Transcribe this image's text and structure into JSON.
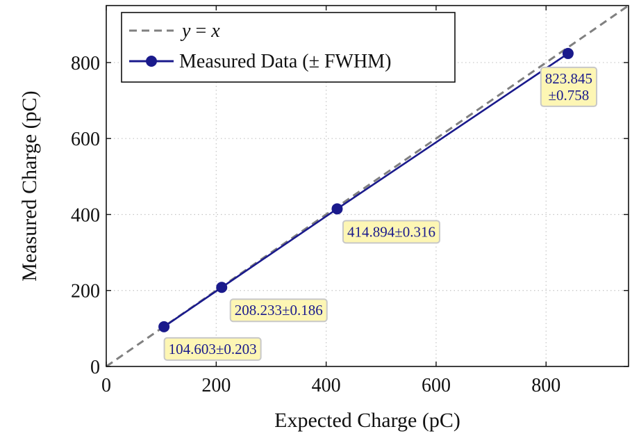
{
  "chart_data": {
    "type": "line",
    "xlabel": "Expected Charge (pC)",
    "ylabel": "Measured Charge (pC)",
    "xlim": [
      0,
      950
    ],
    "ylim": [
      0,
      950
    ],
    "xticks": [
      0,
      200,
      400,
      600,
      800
    ],
    "yticks": [
      0,
      200,
      400,
      600,
      800
    ],
    "grid": true,
    "legend_position": "top-left",
    "series": [
      {
        "name": "y = x",
        "style": "dashed",
        "color": "#808080",
        "x": [
          0,
          950
        ],
        "y": [
          0,
          950
        ]
      },
      {
        "name": "Measured Data (± FWHM)",
        "style": "solid-with-markers",
        "color": "#1a1a8c",
        "x": [
          105,
          210,
          420,
          840
        ],
        "y": [
          104.603,
          208.233,
          414.894,
          823.845
        ],
        "labels": [
          [
            "104.603±0.203"
          ],
          [
            "208.233±0.186"
          ],
          [
            "414.894±0.316"
          ],
          [
            "823.845",
            "±0.758"
          ]
        ]
      }
    ],
    "legend": {
      "math_prefix": "y",
      "math_eq": " = ",
      "math_suffix": "x",
      "measured_label": "Measured Data (± FWHM)"
    },
    "annotation_style": {
      "fill": "#fdf6b4",
      "stroke": "#c8c8c8"
    }
  }
}
